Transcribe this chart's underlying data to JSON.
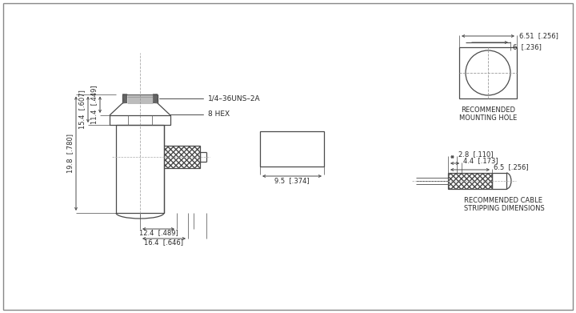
{
  "bg_color": "#ffffff",
  "line_color": "#4a4a4a",
  "text_color": "#2a2a2a",
  "font_size": 6.0,
  "annotations": {
    "thread_label": "1/4–36UNS–2A",
    "hex_label": "8 HEX",
    "dim_19_8": "19.8  [.780]",
    "dim_15_4": "15.4  [.607]",
    "dim_11_4": "11.4  [.449]",
    "dim_12_4": "12.4  [.489]",
    "dim_16_4": "16.4  [.646]",
    "dim_9_5": "9.5  [.374]",
    "dim_6_51": "6.51  [.256]",
    "dim_6": "6  [.236]",
    "dim_2_8": "2.8  [.110]",
    "dim_4_4": "4.4  [.173]",
    "dim_6_5": "6.5  [.256]",
    "mounting_hole_label": "RECOMMENDED\nMOUNTING HOLE",
    "cable_label": "RECOMMENDED CABLE\nSTRIPPING DIMENSIONS"
  }
}
